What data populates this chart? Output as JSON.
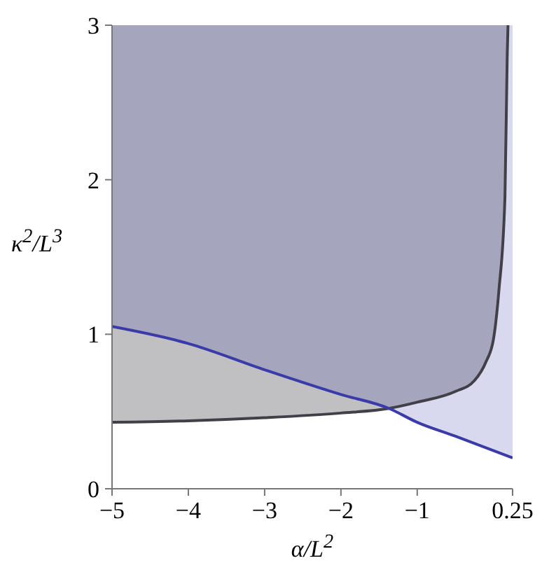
{
  "chart_data": {
    "type": "line",
    "xlabel": "α/L$^{2}$",
    "ylabel": "κ$^{2}$/L$^{3}$",
    "xlim": [
      -5,
      0.25
    ],
    "ylim": [
      0,
      3
    ],
    "xticks": [
      -5,
      -4,
      -3,
      -2,
      -1,
      0.25
    ],
    "yticks": [
      0,
      1,
      2,
      3
    ],
    "marker": "none",
    "line_style": "solid",
    "series": [
      {
        "color": "#404048",
        "x": [
          -5,
          -4,
          -3,
          -2,
          -1.37,
          -1,
          -0.5,
          -0.25,
          -0.1,
          0,
          0.07,
          0.15,
          0.18,
          0.19
        ],
        "values": [
          0.43,
          0.44,
          0.46,
          0.49,
          0.52,
          0.56,
          0.63,
          0.7,
          0.82,
          0.97,
          1.28,
          1.89,
          2.81,
          3
        ],
        "lower": [
          0.43,
          0.44,
          0.46,
          0.49,
          0.52,
          0.56,
          0.63,
          0.7,
          0.82,
          0.97,
          1.28,
          1.89,
          2.81,
          3
        ],
        "upper": [
          3,
          3,
          3,
          3,
          3,
          3,
          3,
          3,
          3,
          3,
          3,
          3,
          3,
          3
        ]
      },
      {
        "color": "#3a3aa8",
        "x": [
          -5,
          -4,
          -3,
          -2,
          -1.37,
          -1,
          -0.5,
          0.25
        ],
        "values": [
          1.05,
          0.94,
          0.77,
          0.61,
          0.52,
          0.43,
          0.34,
          0.2
        ],
        "lower": [
          1.05,
          0.94,
          0.77,
          0.61,
          0.52,
          0.43,
          0.34,
          0.2
        ],
        "upper": [
          3,
          3,
          3,
          3,
          3,
          3,
          3,
          3
        ]
      }
    ]
  }
}
